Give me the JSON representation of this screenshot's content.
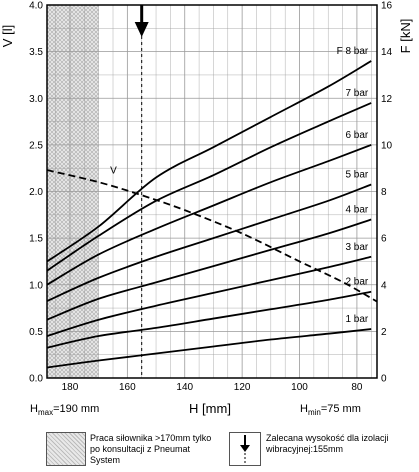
{
  "chart_data": {
    "type": "line",
    "xlabel": "H [mm]",
    "ylabel_left": "V [l]",
    "ylabel_right": "F [kN]",
    "x_range": [
      188,
      73
    ],
    "x_ticks": [
      "180",
      "160",
      "140",
      "120",
      "100",
      "80"
    ],
    "x_tick_values": [
      180,
      160,
      140,
      120,
      100,
      80
    ],
    "y_left_range": [
      0,
      4
    ],
    "y_left_ticks": [
      "0.0",
      "0.5",
      "1.0",
      "1.5",
      "2.0",
      "2.5",
      "3.0",
      "3.5",
      "4.0"
    ],
    "y_right_range": [
      0,
      16
    ],
    "y_right_ticks": [
      "0",
      "2",
      "4",
      "6",
      "8",
      "10",
      "12",
      "14",
      "16"
    ],
    "grid": true,
    "series": [
      {
        "name": "1 bar",
        "axis": "right",
        "x": [
          188,
          170,
          150,
          130,
          110,
          90,
          75
        ],
        "y": [
          0.45,
          0.75,
          1.05,
          1.35,
          1.65,
          1.9,
          2.1
        ]
      },
      {
        "name": "2 bar",
        "axis": "right",
        "x": [
          188,
          170,
          150,
          130,
          110,
          90,
          75
        ],
        "y": [
          1.3,
          1.8,
          2.15,
          2.55,
          2.95,
          3.35,
          3.7
        ]
      },
      {
        "name": "3 bar",
        "axis": "right",
        "x": [
          188,
          170,
          150,
          130,
          110,
          90,
          75
        ],
        "y": [
          1.8,
          2.5,
          3.1,
          3.65,
          4.2,
          4.75,
          5.2
        ]
      },
      {
        "name": "4 bar",
        "axis": "right",
        "x": [
          188,
          170,
          150,
          130,
          110,
          90,
          75
        ],
        "y": [
          2.5,
          3.4,
          4.1,
          4.8,
          5.5,
          6.2,
          6.8
        ]
      },
      {
        "name": "5 bar",
        "axis": "right",
        "x": [
          188,
          170,
          150,
          130,
          110,
          90,
          75
        ],
        "y": [
          3.3,
          4.3,
          5.2,
          6.0,
          6.8,
          7.6,
          8.3
        ]
      },
      {
        "name": "6 bar",
        "axis": "right",
        "x": [
          188,
          170,
          150,
          130,
          110,
          90,
          75
        ],
        "y": [
          4.0,
          5.3,
          6.4,
          7.4,
          8.4,
          9.3,
          10.0
        ]
      },
      {
        "name": "7 bar",
        "axis": "right",
        "x": [
          188,
          170,
          150,
          130,
          110,
          90,
          75
        ],
        "y": [
          4.6,
          6.1,
          7.6,
          8.7,
          9.9,
          11.0,
          11.8
        ]
      },
      {
        "name": "F 8 bar",
        "axis": "right",
        "x": [
          188,
          170,
          150,
          130,
          110,
          90,
          75
        ],
        "y": [
          5.0,
          6.5,
          8.6,
          9.9,
          11.2,
          12.5,
          13.6
        ]
      },
      {
        "name": "V",
        "axis": "left",
        "style": "dashed",
        "x": [
          188,
          170,
          155,
          140,
          120,
          100,
          85,
          73
        ],
        "y": [
          2.23,
          2.1,
          1.96,
          1.8,
          1.55,
          1.25,
          1.03,
          0.82
        ]
      }
    ],
    "annotations": {
      "hatched_region_x": [
        188,
        170
      ],
      "recommended_height_x": 155
    }
  },
  "labels": {
    "h_max": "H",
    "h_max_sub": "max",
    "h_max_value": "=190 mm",
    "h_min": "H",
    "h_min_sub": "min",
    "h_min_value": "=75 mm"
  },
  "legend": {
    "hatched_text": "Praca siłownika >170mm tylko po konsultacji z Pneumat System",
    "arrow_text": "Zalecana wysokość dla izolacji wibracyjnej:155mm"
  },
  "colors": {
    "line": "#000000",
    "grid": "#999999",
    "hatch": "#bbbbbb"
  }
}
